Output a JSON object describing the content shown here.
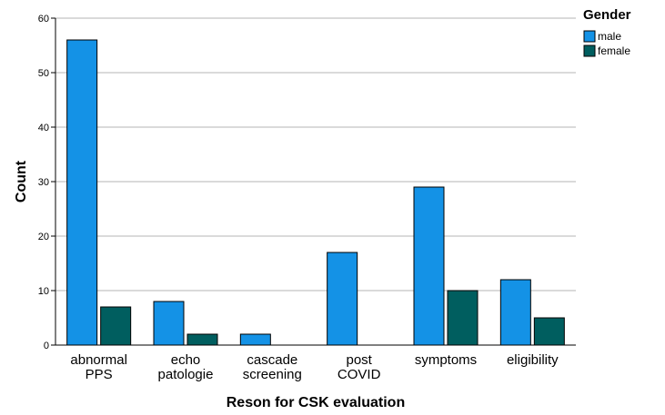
{
  "chart_data": {
    "type": "bar",
    "categories": [
      [
        "abnormal",
        "PPS"
      ],
      [
        "echo",
        "patologie"
      ],
      [
        "cascade",
        "screening"
      ],
      [
        "post",
        "COVID"
      ],
      [
        "symptoms"
      ],
      [
        "eligibility"
      ]
    ],
    "series": [
      {
        "name": "male",
        "color": "#1492e6",
        "values": [
          56,
          8,
          2,
          17,
          29,
          12
        ]
      },
      {
        "name": "female",
        "color": "#005e5f",
        "values": [
          7,
          2,
          0,
          0,
          10,
          5
        ]
      }
    ],
    "xlabel": "Reson for CSK evaluation",
    "ylabel": "Count",
    "ylim": [
      0,
      60
    ],
    "yticks": [
      0,
      10,
      20,
      30,
      40,
      50,
      60
    ],
    "grid": true,
    "legend": {
      "title": "Gender",
      "position": "top-right"
    }
  }
}
